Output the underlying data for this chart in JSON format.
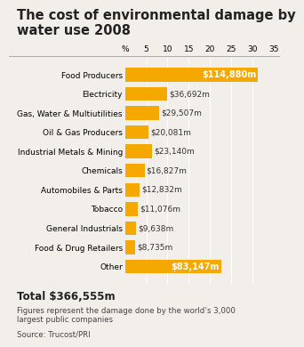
{
  "title": "The cost of environmental damage by\nwater use 2008",
  "categories": [
    "Food Producers",
    "Electricity",
    "Gas, Water & Multiutilities",
    "Oil & Gas Producers",
    "Industrial Metals & Mining",
    "Chemicals",
    "Automobiles & Parts",
    "Tobacco",
    "General Industrials",
    "Food & Drug Retailers",
    "Other"
  ],
  "values": [
    31.3,
    10.0,
    8.05,
    5.47,
    6.31,
    4.59,
    3.5,
    3.02,
    2.63,
    2.38,
    22.65
  ],
  "labels": [
    "$114,880m",
    "$36,692m",
    "$29,507m",
    "$20,081m",
    "$23,140m",
    "$16,827m",
    "$12,832m",
    "$11,076m",
    "$9,638m",
    "$8,735m",
    "$83,147m"
  ],
  "label_inside": [
    true,
    false,
    false,
    false,
    false,
    false,
    false,
    false,
    false,
    false,
    true
  ],
  "bar_color": "#F5A800",
  "bg_color": "#F2EFEA",
  "title_fontsize": 10.5,
  "total_text": "Total $366,555m",
  "footnote1": "Figures represent the damage done by the world’s 3,000",
  "footnote2": "largest public companies",
  "source": "Source: Trucost/PRI",
  "xlim": [
    0,
    35
  ],
  "xticks": [
    0,
    5,
    10,
    15,
    20,
    25,
    30,
    35
  ]
}
